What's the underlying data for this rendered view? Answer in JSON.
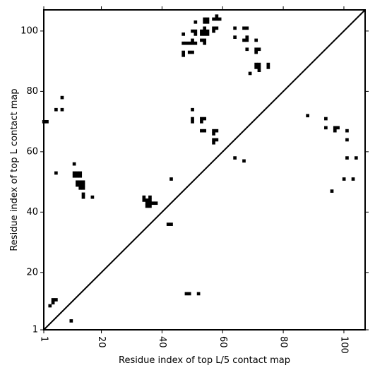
{
  "chart_data": {
    "type": "heatmap",
    "xlabel": "Residue index of top L/5 contact map",
    "ylabel": "Residue index of top L contact map",
    "xlim": [
      1,
      107
    ],
    "ylim": [
      1,
      107
    ],
    "x_ticks": [
      1,
      20,
      40,
      60,
      80,
      100
    ],
    "y_ticks": [
      1,
      20,
      40,
      60,
      80,
      100
    ],
    "x_tick_labels": [
      "1",
      "20",
      "40",
      "60",
      "80",
      "100"
    ],
    "y_tick_labels": [
      "1",
      "20",
      "40",
      "60",
      "80",
      "100"
    ],
    "x_tick_rotation_deg": -90,
    "diagonal": true,
    "grid": false,
    "cell_color": "#000000",
    "upper_triangle_cells": [
      [
        88,
        72
      ],
      [
        94,
        71
      ],
      [
        94,
        68
      ],
      [
        97,
        68
      ],
      [
        98,
        68
      ],
      [
        97,
        67
      ],
      [
        101,
        67
      ],
      [
        101,
        64
      ],
      [
        96,
        47
      ],
      [
        101,
        58
      ],
      [
        104,
        58
      ],
      [
        100,
        51
      ],
      [
        103,
        51
      ],
      [
        64,
        58
      ],
      [
        67,
        57
      ],
      [
        50,
        74
      ],
      [
        50,
        71
      ],
      [
        50,
        70
      ],
      [
        53,
        71
      ],
      [
        54,
        71
      ],
      [
        53,
        70
      ],
      [
        53,
        67
      ],
      [
        54,
        67
      ],
      [
        57,
        67
      ],
      [
        58,
        67
      ],
      [
        57,
        66
      ],
      [
        57,
        64
      ],
      [
        58,
        64
      ],
      [
        57,
        63
      ],
      [
        47,
        99
      ],
      [
        51,
        103
      ],
      [
        54,
        104
      ],
      [
        55,
        104
      ],
      [
        54,
        103
      ],
      [
        55,
        103
      ],
      [
        57,
        104
      ],
      [
        58,
        104
      ],
      [
        59,
        104
      ],
      [
        58,
        105
      ],
      [
        47,
        96
      ],
      [
        48,
        96
      ],
      [
        49,
        96
      ],
      [
        50,
        96
      ],
      [
        51,
        96
      ],
      [
        50,
        97
      ],
      [
        47,
        93
      ],
      [
        47,
        92
      ],
      [
        49,
        93
      ],
      [
        50,
        93
      ],
      [
        50,
        100
      ],
      [
        51,
        100
      ],
      [
        51,
        99
      ],
      [
        53,
        100
      ],
      [
        54,
        100
      ],
      [
        55,
        100
      ],
      [
        54,
        101
      ],
      [
        53,
        99
      ],
      [
        54,
        99
      ],
      [
        55,
        99
      ],
      [
        53,
        97
      ],
      [
        54,
        97
      ],
      [
        54,
        96
      ],
      [
        57,
        101
      ],
      [
        58,
        101
      ],
      [
        57,
        100
      ],
      [
        64,
        101
      ],
      [
        64,
        98
      ],
      [
        67,
        101
      ],
      [
        68,
        101
      ],
      [
        67,
        97
      ],
      [
        68,
        97
      ],
      [
        68,
        98
      ],
      [
        68,
        94
      ],
      [
        69,
        86
      ],
      [
        71,
        97
      ],
      [
        71,
        94
      ],
      [
        72,
        94
      ],
      [
        71,
        93
      ],
      [
        71,
        89
      ],
      [
        72,
        89
      ],
      [
        71,
        88
      ],
      [
        72,
        88
      ],
      [
        72,
        87
      ],
      [
        75,
        89
      ],
      [
        75,
        88
      ]
    ],
    "lower_triangle_cells": [
      [
        1,
        70
      ],
      [
        2,
        70
      ],
      [
        5,
        74
      ],
      [
        7,
        74
      ],
      [
        7,
        78
      ],
      [
        11,
        56
      ],
      [
        5,
        53
      ],
      [
        11,
        53
      ],
      [
        12,
        53
      ],
      [
        13,
        53
      ],
      [
        11,
        52
      ],
      [
        12,
        52
      ],
      [
        13,
        52
      ],
      [
        12,
        50
      ],
      [
        13,
        50
      ],
      [
        14,
        50
      ],
      [
        12,
        49
      ],
      [
        13,
        49
      ],
      [
        14,
        49
      ],
      [
        13,
        48
      ],
      [
        14,
        48
      ],
      [
        14,
        46
      ],
      [
        14,
        45
      ],
      [
        17,
        45
      ],
      [
        43,
        51
      ],
      [
        34,
        45
      ],
      [
        36,
        45
      ],
      [
        34,
        44
      ],
      [
        35,
        44
      ],
      [
        36,
        44
      ],
      [
        37,
        43
      ],
      [
        38,
        43
      ],
      [
        35,
        43
      ],
      [
        36,
        43
      ],
      [
        35,
        42
      ],
      [
        36,
        42
      ],
      [
        42,
        36
      ],
      [
        43,
        36
      ],
      [
        48,
        13
      ],
      [
        49,
        13
      ],
      [
        52,
        13
      ],
      [
        4,
        11
      ],
      [
        5,
        11
      ],
      [
        4,
        10
      ],
      [
        3,
        9
      ],
      [
        10,
        4
      ]
    ]
  }
}
